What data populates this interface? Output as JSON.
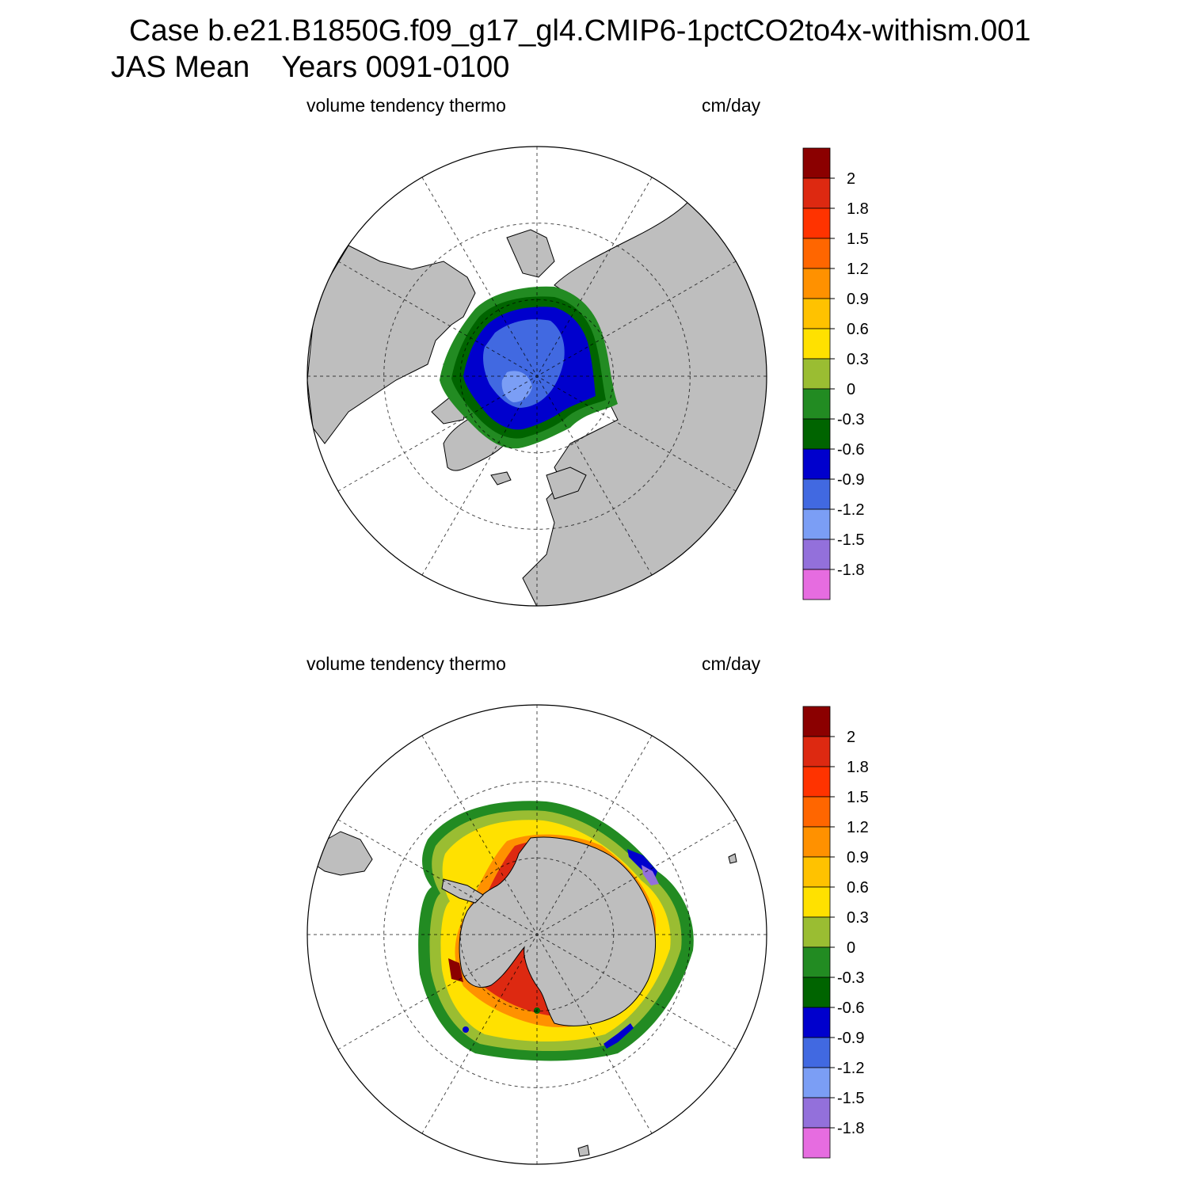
{
  "header": {
    "case_line": "Case b.e21.B1850G.f09_g17_gl4.CMIP6-1pctCO2to4x-withism.001",
    "season": "JAS Mean",
    "years": "Years 0091-0100"
  },
  "panels": [
    {
      "hemisphere": "north",
      "variable_label": "volume tendency thermo",
      "units_label": "cm/day",
      "field_regions": [
        {
          "level": "-0.3..0",
          "color": "#228B22"
        },
        {
          "level": "-0.6..-0.3",
          "color": "#006400"
        },
        {
          "level": "-0.9..-0.6",
          "color": "#0000CD"
        },
        {
          "level": "-1.2..-0.9",
          "color": "#4169E1"
        },
        {
          "level": "-1.5..-1.2",
          "color": "#7B9EF5"
        }
      ]
    },
    {
      "hemisphere": "south",
      "variable_label": "volume tendency thermo",
      "units_label": "cm/day",
      "field_regions": [
        {
          "level": "0.3..0.6",
          "color": "#FFE100"
        },
        {
          "level": "0.6..0.9",
          "color": "#FFC200"
        },
        {
          "level": "0.9..1.2",
          "color": "#FF9100"
        },
        {
          "level": "1.2..1.5",
          "color": "#FF6600"
        },
        {
          "level": "1.8..2",
          "color": "#DD2911"
        },
        {
          "level": ">2",
          "color": "#8B0000"
        },
        {
          "level": "0..0.3",
          "color": "#9ABD32"
        },
        {
          "level": "-0.3..0",
          "color": "#228B22"
        },
        {
          "level": "-0.6..-0.3",
          "color": "#006400"
        },
        {
          "level": "-0.9..-0.6",
          "color": "#0000CD"
        },
        {
          "level": "-1.8..-1.5",
          "color": "#9370DB"
        }
      ]
    }
  ],
  "colorbar": {
    "colors": [
      "#8B0000",
      "#DD2911",
      "#FF3300",
      "#FF6600",
      "#FF9100",
      "#FFC200",
      "#FFE100",
      "#9ABD32",
      "#228B22",
      "#006400",
      "#0000CD",
      "#4169E1",
      "#7B9EF5",
      "#9370DB",
      "#E66CE0"
    ],
    "tick_labels": [
      "2",
      "1.8",
      "1.5",
      "1.2",
      "0.9",
      "0.6",
      "0.3",
      "0",
      "-0.3",
      "-0.6",
      "-0.9",
      "-1.2",
      "-1.5",
      "-1.8"
    ]
  },
  "land_color": "#BEBEBE",
  "grid_style": "dashed"
}
